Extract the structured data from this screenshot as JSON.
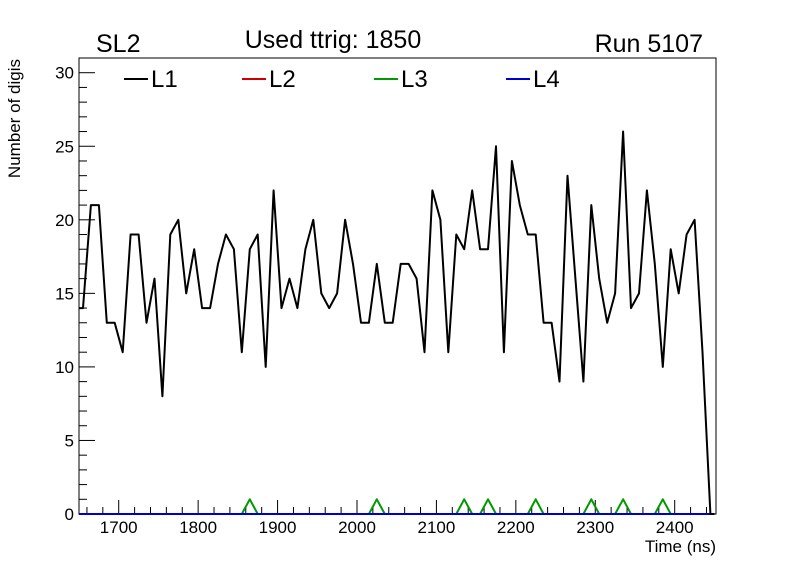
{
  "header": {
    "left": "SL2",
    "center": "Used ttrig: 1850",
    "right": "Run 5107"
  },
  "chart_data": {
    "type": "line",
    "xlabel": "Time (ns)",
    "ylabel": "Number of digis",
    "xlim": [
      1650,
      2452
    ],
    "ylim": [
      0,
      31
    ],
    "x_ticks": [
      1700,
      1800,
      1900,
      2000,
      2100,
      2200,
      2300,
      2400
    ],
    "y_ticks": [
      0,
      5,
      10,
      15,
      20,
      25,
      30
    ],
    "grid": false,
    "legend_position": "top",
    "series": [
      {
        "name": "L1",
        "color": "#000000",
        "x": [
          1650,
          1655,
          1665,
          1675,
          1685,
          1695,
          1705,
          1715,
          1725,
          1735,
          1745,
          1755,
          1765,
          1775,
          1785,
          1795,
          1805,
          1815,
          1825,
          1835,
          1845,
          1855,
          1865,
          1875,
          1885,
          1895,
          1905,
          1915,
          1925,
          1935,
          1945,
          1955,
          1965,
          1975,
          1985,
          1995,
          2005,
          2015,
          2025,
          2035,
          2045,
          2055,
          2065,
          2075,
          2085,
          2095,
          2105,
          2115,
          2125,
          2135,
          2145,
          2155,
          2165,
          2175,
          2185,
          2195,
          2205,
          2215,
          2225,
          2235,
          2245,
          2255,
          2265,
          2275,
          2285,
          2295,
          2305,
          2315,
          2325,
          2335,
          2345,
          2355,
          2365,
          2375,
          2385,
          2395,
          2405,
          2415,
          2425,
          2435,
          2445,
          2450
        ],
        "y": [
          14,
          14,
          21,
          21,
          13,
          13,
          11,
          19,
          19,
          13,
          16,
          8,
          19,
          20,
          15,
          18,
          14,
          14,
          17,
          19,
          18,
          11,
          18,
          19,
          10,
          22,
          14,
          16,
          14,
          18,
          20,
          15,
          14,
          15,
          20,
          17,
          13,
          13,
          17,
          13,
          13,
          17,
          17,
          16,
          11,
          22,
          20,
          11,
          19,
          18,
          22,
          18,
          18,
          25,
          11,
          24,
          21,
          19,
          19,
          13,
          13,
          9,
          23,
          16,
          9,
          21,
          16,
          13,
          15,
          26,
          14,
          15,
          22,
          17,
          10,
          18,
          15,
          19,
          20,
          11,
          0,
          0
        ]
      },
      {
        "name": "L2",
        "color": "#cc0000",
        "x": [
          1650,
          2450
        ],
        "y": [
          0,
          0
        ]
      },
      {
        "name": "L3",
        "color": "#009900",
        "x": [
          1650,
          1855,
          1865,
          1875,
          2015,
          2025,
          2035,
          2125,
          2135,
          2145,
          2155,
          2165,
          2175,
          2215,
          2225,
          2235,
          2285,
          2295,
          2305,
          2325,
          2335,
          2345,
          2375,
          2385,
          2395,
          2450
        ],
        "y": [
          0,
          0,
          1,
          0,
          0,
          1,
          0,
          0,
          1,
          0,
          0,
          1,
          0,
          0,
          1,
          0,
          0,
          1,
          0,
          0,
          1,
          0,
          0,
          1,
          0,
          0
        ]
      },
      {
        "name": "L4",
        "color": "#0000cc",
        "x": [
          1650,
          2450
        ],
        "y": [
          0,
          0
        ]
      }
    ]
  }
}
